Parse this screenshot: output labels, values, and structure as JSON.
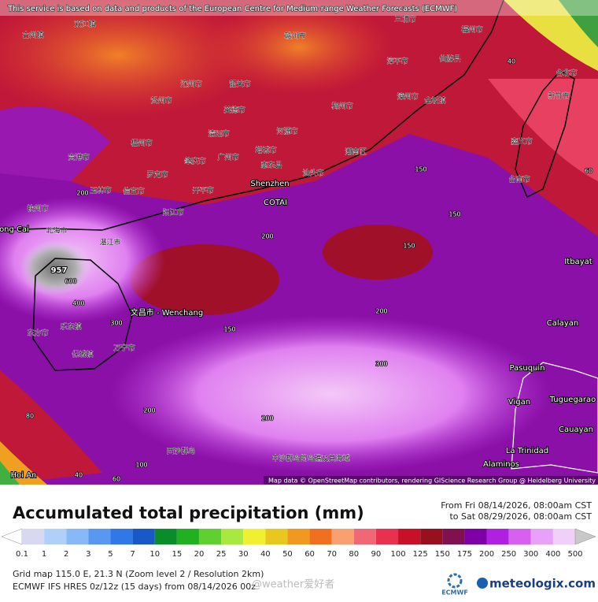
{
  "header": {
    "notice": "This service is based on data and products of the European Centre for Medium-range Weather Forecasts (ECMWF)"
  },
  "map": {
    "labels": [
      "古州镇",
      "双江镇",
      "赣州市",
      "梅州市",
      "三明市",
      "福州市",
      "漳平市",
      "仙游县",
      "漳州市",
      "金坂镇",
      "台北市",
      "新竹市",
      "嘉义市",
      "台南市",
      "汕头市",
      "潮南区",
      "河源市",
      "惠东县",
      "增城市",
      "广州市",
      "清远市",
      "英德市",
      "韶关市",
      "连州市",
      "贺州市",
      "肇庆市",
      "梧州市",
      "罗定市",
      "开平市",
      "阳江市",
      "信宜市",
      "玉林市",
      "贵港市",
      "钦州市",
      "北海市",
      "湛江市",
      "文昌市 - Wenchang",
      "东方市",
      "乐东镇",
      "保城镇",
      "万宁市",
      "西沙群岛",
      "中沙群岛的岛礁及其海域",
      "Shenzhen",
      "COTAI",
      "ong Cai",
      "957",
      "600",
      "400",
      "Itbayat",
      "Calayan",
      "Pasuquin",
      "Vigan",
      "Tuguegarao",
      "Cauayan",
      "La Trinidad",
      "Alaminos",
      "Hoi An"
    ],
    "contours": [
      "200",
      "200",
      "150",
      "150",
      "150",
      "200",
      "300",
      "200",
      "200",
      "100",
      "40",
      "60",
      "80",
      "60",
      "40",
      "150",
      "300"
    ],
    "attribution": "Map data © OpenStreetMap contributors, rendering GIScience Research Group @ Heidelberg University"
  },
  "legend": {
    "title": "Accumulated total precipitation (mm)",
    "period_from": "From Fri 08/14/2026, 08:00am CST",
    "period_to": "to Sat 08/29/2026, 08:00am CST",
    "values": [
      0.1,
      1,
      2,
      3,
      5,
      7,
      10,
      15,
      20,
      25,
      30,
      40,
      50,
      60,
      70,
      80,
      90,
      100,
      125,
      150,
      175,
      200,
      250,
      300,
      400,
      500
    ],
    "colors": [
      "#ffffff",
      "#d8d8f0",
      "#b0d0f8",
      "#88b8f8",
      "#5898f0",
      "#3078e8",
      "#1858c8",
      "#0a8c2a",
      "#20b020",
      "#60d030",
      "#a8e840",
      "#f0f030",
      "#e8c820",
      "#f09820",
      "#f07020",
      "#f8a070",
      "#f06878",
      "#e83050",
      "#c81028",
      "#981020",
      "#801050",
      "#8000a8",
      "#b020e0",
      "#d860f0",
      "#e8a0f8",
      "#f0d0f8",
      "#c8c8c8"
    ]
  },
  "footer": {
    "grid_info": "Grid map 115.0 E, 21.3 N (Zoom level 2 / Resolution 2km)",
    "model_info": "ECMWF IFS HRES 0z/12z (15 days) from 08/14/2026 00z",
    "watermark": "@weather爱好者",
    "ecmwf": "ECMWF",
    "site": "meteologix.com"
  }
}
